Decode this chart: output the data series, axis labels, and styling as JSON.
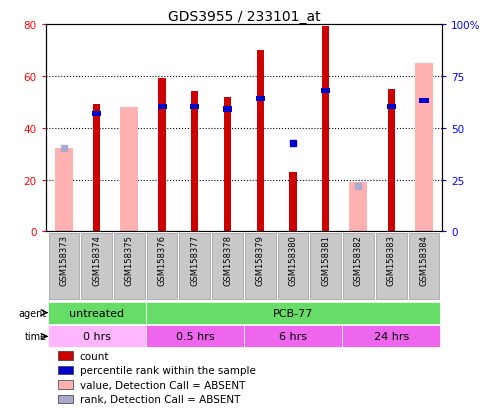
{
  "title": "GDS3955 / 233101_at",
  "samples": [
    "GSM158373",
    "GSM158374",
    "GSM158375",
    "GSM158376",
    "GSM158377",
    "GSM158378",
    "GSM158379",
    "GSM158380",
    "GSM158381",
    "GSM158382",
    "GSM158383",
    "GSM158384"
  ],
  "count_values": [
    null,
    49,
    null,
    59,
    54,
    52,
    70,
    23,
    79,
    null,
    55,
    null
  ],
  "absent_value_bars": [
    32,
    null,
    48,
    null,
    null,
    null,
    null,
    null,
    null,
    19,
    null,
    65
  ],
  "percentile_rank_right": [
    null,
    57,
    null,
    60,
    60,
    59,
    64,
    null,
    68,
    null,
    60,
    63
  ],
  "absent_rank_dot_right": [
    40,
    null,
    null,
    null,
    null,
    null,
    null,
    null,
    null,
    22,
    null,
    null
  ],
  "blue_dot_left": [
    null,
    null,
    null,
    null,
    null,
    null,
    null,
    34,
    null,
    null,
    null,
    null
  ],
  "ylim_left": [
    0,
    80
  ],
  "ylim_right": [
    0,
    100
  ],
  "yticks_left": [
    0,
    20,
    40,
    60,
    80
  ],
  "ytick_labels_left": [
    "0",
    "20",
    "40",
    "60",
    "80"
  ],
  "yticks_right": [
    0,
    25,
    50,
    75,
    100
  ],
  "ytick_labels_right": [
    "0",
    "25",
    "50",
    "75",
    "100%"
  ],
  "color_count": "#CC0000",
  "color_absent_value": "#FFB0B0",
  "color_percentile": "#0000CC",
  "color_absent_rank": "#AAAACC",
  "time_color_0": "#FFB6FF",
  "time_color_rest": "#EE66EE",
  "agent_color": "#66DD66",
  "label_bg": "#C8C8C8"
}
